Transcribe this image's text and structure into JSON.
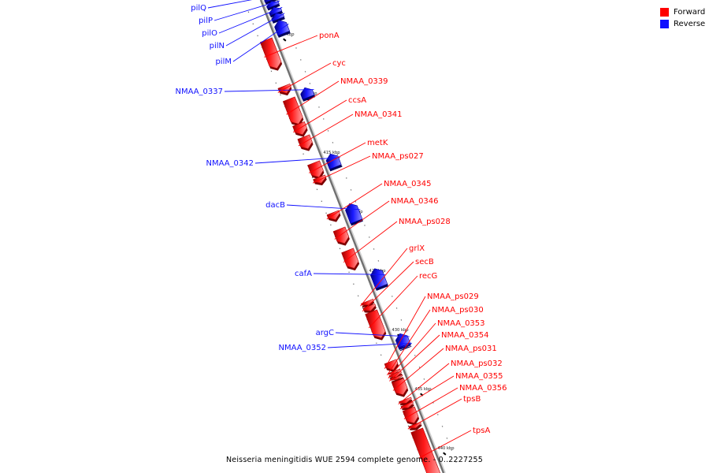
{
  "legend": {
    "forward": {
      "label": "Forward",
      "color": "#ff0000"
    },
    "reverse": {
      "label": "Reverse",
      "color": "#1010ff"
    }
  },
  "caption": "Neisseria meningitidis WUE 2594 complete genome. - 0..2227255",
  "map": {
    "start_kbp": 401.5,
    "end_kbp": 441.5,
    "major_ticks": [
      {
        "kbp": 405,
        "label": "405 kbp"
      },
      {
        "kbp": 410,
        "label": "410 kbp"
      },
      {
        "kbp": 415,
        "label": "415 kbp"
      },
      {
        "kbp": 420,
        "label": "420 kbp"
      },
      {
        "kbp": 425,
        "label": "425 kbp"
      },
      {
        "kbp": 430,
        "label": "430 kbp"
      },
      {
        "kbp": 435,
        "label": "435 kbp"
      },
      {
        "kbp": 440,
        "label": "440 kbp"
      }
    ]
  },
  "genes": {
    "reverse": [
      {
        "name": "pilQ",
        "start": 401.4,
        "end": 401.8
      },
      {
        "name": "pilP",
        "start": 401.9,
        "end": 402.3
      },
      {
        "name": "pilO",
        "start": 402.4,
        "end": 402.9
      },
      {
        "name": "pilN",
        "start": 402.9,
        "end": 403.4
      },
      {
        "name": "pilM",
        "start": 403.5,
        "end": 404.6
      },
      {
        "name": "NMAA_0337",
        "start": 409.2,
        "end": 410.0
      },
      {
        "name": "NMAA_0342",
        "start": 414.8,
        "end": 415.9
      },
      {
        "name": "dacB",
        "start": 419.0,
        "end": 420.5
      },
      {
        "name": "cafA",
        "start": 424.5,
        "end": 426.0
      },
      {
        "name": "argC",
        "start": 430.0,
        "end": 431.0
      },
      {
        "name": "NMAA_0352",
        "start": 431.0,
        "end": 431.1
      }
    ],
    "forward": [
      {
        "name": "ponA",
        "start": 404.6,
        "end": 407.0
      },
      {
        "name": "cyc",
        "start": 408.5,
        "end": 409.1
      },
      {
        "name": "NMAA_0339",
        "start": 409.6,
        "end": 411.7
      },
      {
        "name": "ccsA",
        "start": 411.7,
        "end": 412.6
      },
      {
        "name": "NMAA_0341",
        "start": 412.8,
        "end": 413.8
      },
      {
        "name": "metK",
        "start": 415.0,
        "end": 416.2
      },
      {
        "name": "NMAA_ps027",
        "start": 416.2,
        "end": 416.7
      },
      {
        "name": "NMAA_0345",
        "start": 419.2,
        "end": 419.8
      },
      {
        "name": "NMAA_0346",
        "start": 420.6,
        "end": 421.8
      },
      {
        "name": "NMAA_ps028",
        "start": 422.4,
        "end": 423.9
      },
      {
        "name": "grlX",
        "start": 426.7,
        "end": 427.0
      },
      {
        "name": "secB",
        "start": 427.1,
        "end": 427.5
      },
      {
        "name": "recG",
        "start": 427.6,
        "end": 429.8
      },
      {
        "name": "NMAA_ps029",
        "start": 431.8,
        "end": 432.5
      },
      {
        "name": "NMAA_ps030",
        "start": 432.6,
        "end": 432.8
      },
      {
        "name": "NMAA_0353",
        "start": 432.8,
        "end": 433.1
      },
      {
        "name": "NMAA_0354",
        "start": 433.1,
        "end": 433.3
      },
      {
        "name": "NMAA_ps031",
        "start": 433.4,
        "end": 434.6
      },
      {
        "name": "NMAA_ps032",
        "start": 435.0,
        "end": 435.3
      },
      {
        "name": "NMAA_0355",
        "start": 435.4,
        "end": 435.7
      },
      {
        "name": "NMAA_0356",
        "start": 435.8,
        "end": 437.0
      },
      {
        "name": "tpsB",
        "start": 437.1,
        "end": 437.4
      },
      {
        "name": "tpsA",
        "start": 437.6,
        "end": 441.8
      }
    ]
  }
}
